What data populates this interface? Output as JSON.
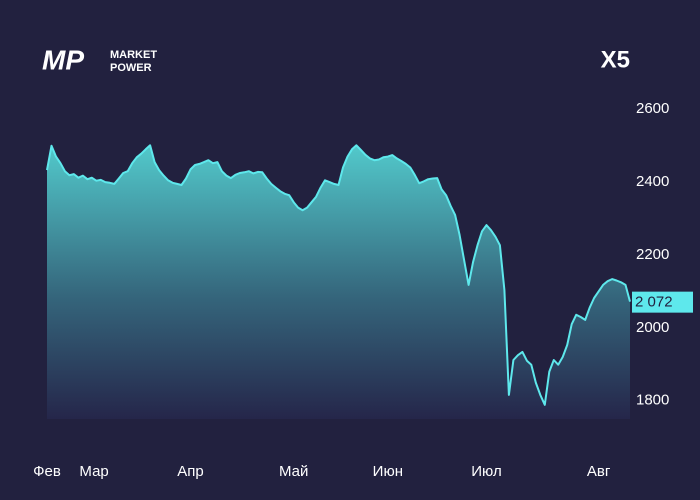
{
  "chart_data": {
    "type": "area",
    "title": "X5",
    "logo": {
      "mark": "MP",
      "lines": [
        "MARKET",
        "POWER"
      ]
    },
    "color": "#5ee8ec",
    "x": [
      0,
      1,
      2,
      3,
      4,
      5,
      6,
      7,
      8,
      9,
      10,
      11,
      12,
      13,
      14,
      15,
      16,
      17,
      18,
      19,
      20,
      21,
      22,
      23,
      24,
      25,
      26,
      27,
      28,
      29,
      30,
      31,
      32,
      33,
      34,
      35,
      36,
      37,
      38,
      39,
      40,
      41,
      42,
      43,
      44,
      45,
      46,
      47,
      48,
      49,
      50,
      51,
      52,
      53,
      54,
      55,
      56,
      57,
      58,
      59,
      60,
      61,
      62,
      63,
      64,
      65,
      66,
      67,
      68,
      69,
      70,
      71,
      72,
      73,
      74,
      75,
      76,
      77,
      78,
      79,
      80,
      81,
      82,
      83,
      84,
      85,
      86,
      87,
      88,
      89,
      90,
      91,
      92,
      93,
      94,
      95,
      96,
      97,
      98,
      99,
      100,
      101,
      102,
      103,
      104,
      105,
      106,
      107,
      108,
      109,
      110,
      111,
      112,
      113,
      114,
      115,
      116,
      117,
      118,
      119,
      120,
      121,
      122,
      123,
      124,
      125,
      126,
      127,
      128,
      129,
      130
    ],
    "values": [
      2433,
      2500,
      2470,
      2452,
      2430,
      2419,
      2422,
      2412,
      2418,
      2408,
      2412,
      2404,
      2406,
      2400,
      2398,
      2395,
      2410,
      2425,
      2430,
      2452,
      2468,
      2478,
      2490,
      2501,
      2455,
      2433,
      2418,
      2405,
      2398,
      2395,
      2392,
      2410,
      2435,
      2447,
      2450,
      2455,
      2460,
      2452,
      2455,
      2430,
      2418,
      2411,
      2420,
      2425,
      2427,
      2430,
      2424,
      2428,
      2427,
      2410,
      2395,
      2385,
      2375,
      2368,
      2364,
      2345,
      2330,
      2323,
      2330,
      2345,
      2360,
      2385,
      2405,
      2400,
      2395,
      2392,
      2440,
      2470,
      2490,
      2501,
      2488,
      2475,
      2465,
      2460,
      2462,
      2468,
      2470,
      2474,
      2465,
      2458,
      2450,
      2440,
      2420,
      2397,
      2402,
      2408,
      2410,
      2411,
      2380,
      2364,
      2335,
      2310,
      2255,
      2186,
      2118,
      2180,
      2227,
      2265,
      2282,
      2268,
      2250,
      2227,
      2104,
      1816,
      1912,
      1925,
      1934,
      1910,
      1899,
      1850,
      1816,
      1789,
      1880,
      1912,
      1899,
      1920,
      1953,
      2010,
      2036,
      2030,
      2022,
      2055,
      2082,
      2100,
      2118,
      2128,
      2134,
      2130,
      2125,
      2118,
      2072
    ],
    "last_value_label": "2 072",
    "xlim": [
      0,
      130
    ],
    "xticks": [
      {
        "value": 0,
        "label": "Фев"
      },
      {
        "value": 10.5,
        "label": "Мар"
      },
      {
        "value": 32,
        "label": "Апр"
      },
      {
        "value": 55,
        "label": "Май"
      },
      {
        "value": 76,
        "label": "Июн"
      },
      {
        "value": 98,
        "label": "Июл"
      },
      {
        "value": 123,
        "label": "Авг"
      }
    ],
    "ylim": [
      1750,
      2650
    ],
    "yticks": [
      2600,
      2400,
      2200,
      2000,
      1800
    ]
  }
}
